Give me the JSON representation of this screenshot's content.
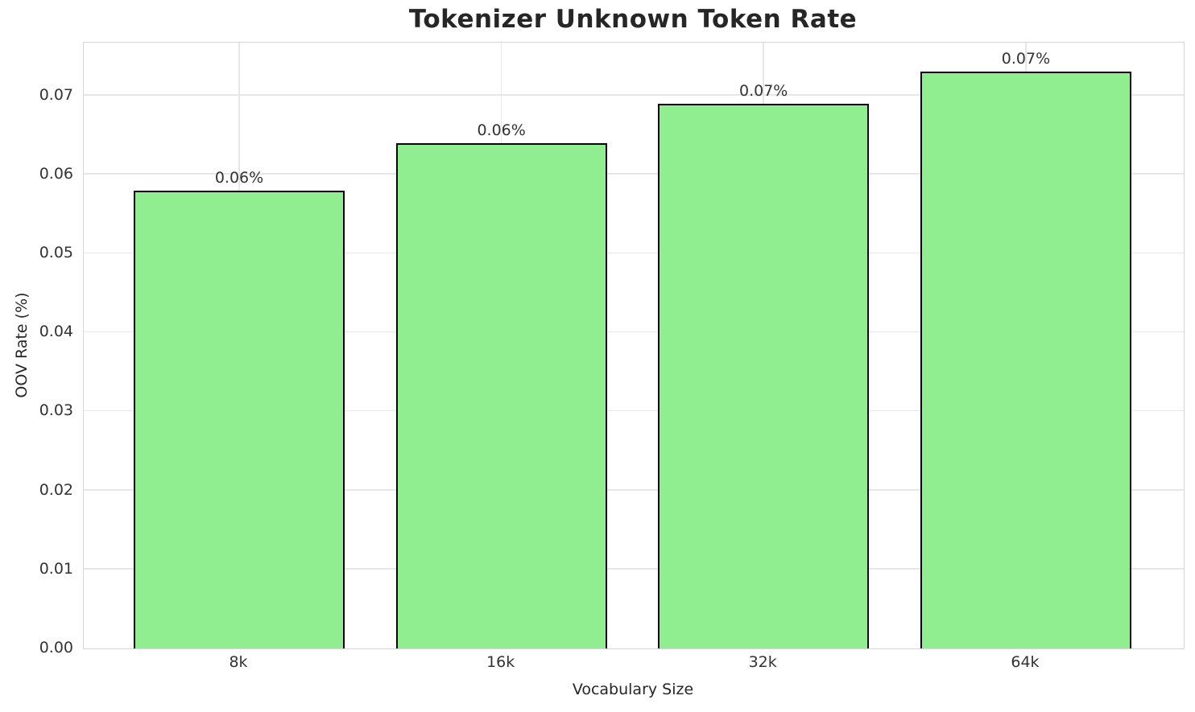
{
  "chart_data": {
    "type": "bar",
    "title": "Tokenizer Unknown Token Rate",
    "xlabel": "Vocabulary Size",
    "ylabel": "OOV Rate (%)",
    "categories": [
      "8k",
      "16k",
      "32k",
      "64k"
    ],
    "values": [
      0.058,
      0.064,
      0.069,
      0.073
    ],
    "bar_labels": [
      "0.06%",
      "0.06%",
      "0.07%",
      "0.07%"
    ],
    "ytick_labels": [
      "0.00",
      "0.01",
      "0.02",
      "0.03",
      "0.04",
      "0.05",
      "0.06",
      "0.07"
    ],
    "ytick_values": [
      0.0,
      0.01,
      0.02,
      0.03,
      0.04,
      0.05,
      0.06,
      0.07
    ],
    "ylim": [
      0,
      0.0767
    ],
    "grid": true,
    "legend": "none",
    "bar_color": "#90EE90",
    "bar_edge_color": "#000000",
    "grid_color": "#e7e7e7",
    "spine_color": "#d6d6d6",
    "title_color": "#262626",
    "tick_color": "#333333"
  }
}
